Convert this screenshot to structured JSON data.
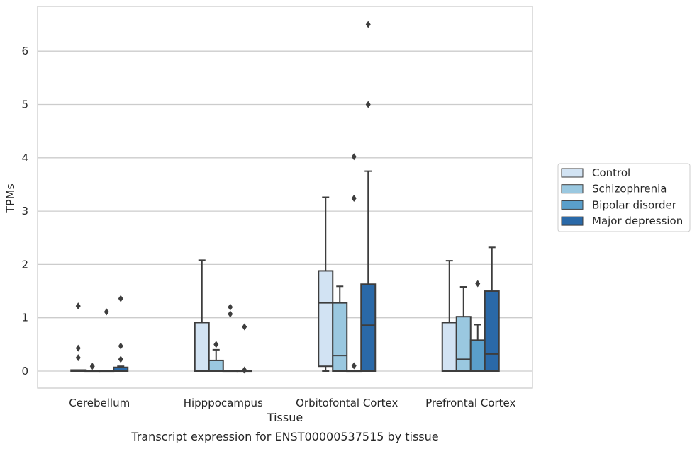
{
  "chart_data": {
    "type": "box",
    "title": "",
    "caption": "Transcript expression for ENST00000537515 by tissue",
    "xlabel": "Tissue",
    "ylabel": "TPMs",
    "ylim": [
      -0.32,
      6.85
    ],
    "yticks": [
      "0",
      "1",
      "2",
      "3",
      "4",
      "5",
      "6"
    ],
    "grid": true,
    "legend_position": "right",
    "categories": [
      "Cerebellum",
      "Hipppocampus",
      "Orbitofontal Cortex",
      "Prefrontal Cortex"
    ],
    "series": [
      {
        "name": "Control",
        "color": "#d2e3f3",
        "boxes": [
          {
            "whislo": 0,
            "q1": 0,
            "med": 0,
            "q3": 0.02,
            "whishi": 0.02,
            "fliers": [
              0.25,
              0.43,
              1.22
            ]
          },
          {
            "whislo": 0,
            "q1": 0,
            "med": 0,
            "q3": 0.91,
            "whishi": 2.08,
            "fliers": []
          },
          {
            "whislo": 0,
            "q1": 0.09,
            "med": 1.28,
            "q3": 1.88,
            "whishi": 3.26,
            "fliers": []
          },
          {
            "whislo": 0,
            "q1": 0,
            "med": 0,
            "q3": 0.91,
            "whishi": 2.07,
            "fliers": []
          }
        ]
      },
      {
        "name": "Schizophrenia",
        "color": "#9ac8e0",
        "boxes": [
          {
            "whislo": 0,
            "q1": 0,
            "med": 0,
            "q3": 0,
            "whishi": 0,
            "fliers": [
              0.09
            ]
          },
          {
            "whislo": 0,
            "q1": 0,
            "med": 0,
            "q3": 0.2,
            "whishi": 0.4,
            "fliers": [
              0.5
            ]
          },
          {
            "whislo": 0,
            "q1": 0,
            "med": 0.29,
            "q3": 1.28,
            "whishi": 1.59,
            "fliers": []
          },
          {
            "whislo": 0,
            "q1": 0,
            "med": 0.22,
            "q3": 1.02,
            "whishi": 1.58,
            "fliers": []
          }
        ]
      },
      {
        "name": "Bipolar disorder",
        "color": "#5a9fcb",
        "boxes": [
          {
            "whislo": 0,
            "q1": 0,
            "med": 0,
            "q3": 0,
            "whishi": 0,
            "fliers": [
              1.11
            ]
          },
          {
            "whislo": 0,
            "q1": 0,
            "med": 0,
            "q3": 0,
            "whishi": 0,
            "fliers": [
              1.07,
              1.2
            ]
          },
          {
            "whislo": 0,
            "q1": 0,
            "med": 0,
            "q3": 0,
            "whishi": 0,
            "fliers": [
              0.1,
              3.24,
              4.02
            ]
          },
          {
            "whislo": 0,
            "q1": 0,
            "med": 0,
            "q3": 0.58,
            "whishi": 0.87,
            "fliers": [
              1.64
            ]
          }
        ]
      },
      {
        "name": "Major depression",
        "color": "#2a69a8",
        "boxes": [
          {
            "whislo": 0,
            "q1": 0,
            "med": 0,
            "q3": 0.07,
            "whishi": 0.09,
            "fliers": [
              0.22,
              0.47,
              1.36
            ]
          },
          {
            "whislo": 0,
            "q1": 0,
            "med": 0,
            "q3": 0,
            "whishi": 0,
            "fliers": [
              0.02,
              0.83
            ]
          },
          {
            "whislo": 0,
            "q1": 0,
            "med": 0.86,
            "q3": 1.63,
            "whishi": 3.75,
            "fliers": [
              5.0,
              6.5
            ]
          },
          {
            "whislo": 0,
            "q1": 0,
            "med": 0.32,
            "q3": 1.5,
            "whishi": 2.32,
            "fliers": []
          }
        ]
      }
    ]
  }
}
